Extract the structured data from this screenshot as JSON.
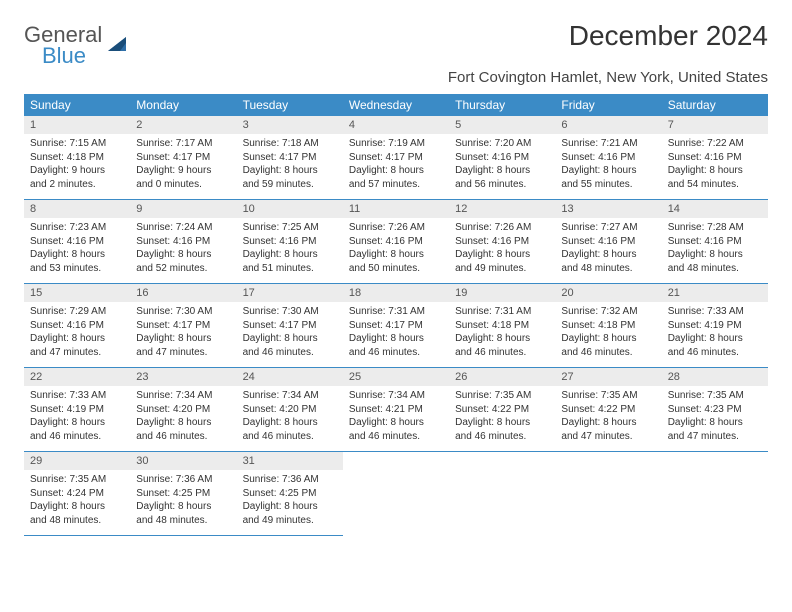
{
  "logo": {
    "general": "General",
    "blue": "Blue"
  },
  "title": "December 2024",
  "subtitle": "Fort Covington Hamlet, New York, United States",
  "colors": {
    "header_bg": "#3b8bc6",
    "header_text": "#ffffff",
    "daynum_bg": "#ececec",
    "border": "#3b8bc6",
    "body_text": "#333333"
  },
  "typography": {
    "title_fontsize": 28,
    "subtitle_fontsize": 15,
    "dayheader_fontsize": 12,
    "daynum_fontsize": 11,
    "body_fontsize": 10
  },
  "day_headers": [
    "Sunday",
    "Monday",
    "Tuesday",
    "Wednesday",
    "Thursday",
    "Friday",
    "Saturday"
  ],
  "weeks": [
    [
      {
        "num": "1",
        "sunrise": "Sunrise: 7:15 AM",
        "sunset": "Sunset: 4:18 PM",
        "daylight": "Daylight: 9 hours and 2 minutes."
      },
      {
        "num": "2",
        "sunrise": "Sunrise: 7:17 AM",
        "sunset": "Sunset: 4:17 PM",
        "daylight": "Daylight: 9 hours and 0 minutes."
      },
      {
        "num": "3",
        "sunrise": "Sunrise: 7:18 AM",
        "sunset": "Sunset: 4:17 PM",
        "daylight": "Daylight: 8 hours and 59 minutes."
      },
      {
        "num": "4",
        "sunrise": "Sunrise: 7:19 AM",
        "sunset": "Sunset: 4:17 PM",
        "daylight": "Daylight: 8 hours and 57 minutes."
      },
      {
        "num": "5",
        "sunrise": "Sunrise: 7:20 AM",
        "sunset": "Sunset: 4:16 PM",
        "daylight": "Daylight: 8 hours and 56 minutes."
      },
      {
        "num": "6",
        "sunrise": "Sunrise: 7:21 AM",
        "sunset": "Sunset: 4:16 PM",
        "daylight": "Daylight: 8 hours and 55 minutes."
      },
      {
        "num": "7",
        "sunrise": "Sunrise: 7:22 AM",
        "sunset": "Sunset: 4:16 PM",
        "daylight": "Daylight: 8 hours and 54 minutes."
      }
    ],
    [
      {
        "num": "8",
        "sunrise": "Sunrise: 7:23 AM",
        "sunset": "Sunset: 4:16 PM",
        "daylight": "Daylight: 8 hours and 53 minutes."
      },
      {
        "num": "9",
        "sunrise": "Sunrise: 7:24 AM",
        "sunset": "Sunset: 4:16 PM",
        "daylight": "Daylight: 8 hours and 52 minutes."
      },
      {
        "num": "10",
        "sunrise": "Sunrise: 7:25 AM",
        "sunset": "Sunset: 4:16 PM",
        "daylight": "Daylight: 8 hours and 51 minutes."
      },
      {
        "num": "11",
        "sunrise": "Sunrise: 7:26 AM",
        "sunset": "Sunset: 4:16 PM",
        "daylight": "Daylight: 8 hours and 50 minutes."
      },
      {
        "num": "12",
        "sunrise": "Sunrise: 7:26 AM",
        "sunset": "Sunset: 4:16 PM",
        "daylight": "Daylight: 8 hours and 49 minutes."
      },
      {
        "num": "13",
        "sunrise": "Sunrise: 7:27 AM",
        "sunset": "Sunset: 4:16 PM",
        "daylight": "Daylight: 8 hours and 48 minutes."
      },
      {
        "num": "14",
        "sunrise": "Sunrise: 7:28 AM",
        "sunset": "Sunset: 4:16 PM",
        "daylight": "Daylight: 8 hours and 48 minutes."
      }
    ],
    [
      {
        "num": "15",
        "sunrise": "Sunrise: 7:29 AM",
        "sunset": "Sunset: 4:16 PM",
        "daylight": "Daylight: 8 hours and 47 minutes."
      },
      {
        "num": "16",
        "sunrise": "Sunrise: 7:30 AM",
        "sunset": "Sunset: 4:17 PM",
        "daylight": "Daylight: 8 hours and 47 minutes."
      },
      {
        "num": "17",
        "sunrise": "Sunrise: 7:30 AM",
        "sunset": "Sunset: 4:17 PM",
        "daylight": "Daylight: 8 hours and 46 minutes."
      },
      {
        "num": "18",
        "sunrise": "Sunrise: 7:31 AM",
        "sunset": "Sunset: 4:17 PM",
        "daylight": "Daylight: 8 hours and 46 minutes."
      },
      {
        "num": "19",
        "sunrise": "Sunrise: 7:31 AM",
        "sunset": "Sunset: 4:18 PM",
        "daylight": "Daylight: 8 hours and 46 minutes."
      },
      {
        "num": "20",
        "sunrise": "Sunrise: 7:32 AM",
        "sunset": "Sunset: 4:18 PM",
        "daylight": "Daylight: 8 hours and 46 minutes."
      },
      {
        "num": "21",
        "sunrise": "Sunrise: 7:33 AM",
        "sunset": "Sunset: 4:19 PM",
        "daylight": "Daylight: 8 hours and 46 minutes."
      }
    ],
    [
      {
        "num": "22",
        "sunrise": "Sunrise: 7:33 AM",
        "sunset": "Sunset: 4:19 PM",
        "daylight": "Daylight: 8 hours and 46 minutes."
      },
      {
        "num": "23",
        "sunrise": "Sunrise: 7:34 AM",
        "sunset": "Sunset: 4:20 PM",
        "daylight": "Daylight: 8 hours and 46 minutes."
      },
      {
        "num": "24",
        "sunrise": "Sunrise: 7:34 AM",
        "sunset": "Sunset: 4:20 PM",
        "daylight": "Daylight: 8 hours and 46 minutes."
      },
      {
        "num": "25",
        "sunrise": "Sunrise: 7:34 AM",
        "sunset": "Sunset: 4:21 PM",
        "daylight": "Daylight: 8 hours and 46 minutes."
      },
      {
        "num": "26",
        "sunrise": "Sunrise: 7:35 AM",
        "sunset": "Sunset: 4:22 PM",
        "daylight": "Daylight: 8 hours and 46 minutes."
      },
      {
        "num": "27",
        "sunrise": "Sunrise: 7:35 AM",
        "sunset": "Sunset: 4:22 PM",
        "daylight": "Daylight: 8 hours and 47 minutes."
      },
      {
        "num": "28",
        "sunrise": "Sunrise: 7:35 AM",
        "sunset": "Sunset: 4:23 PM",
        "daylight": "Daylight: 8 hours and 47 minutes."
      }
    ],
    [
      {
        "num": "29",
        "sunrise": "Sunrise: 7:35 AM",
        "sunset": "Sunset: 4:24 PM",
        "daylight": "Daylight: 8 hours and 48 minutes."
      },
      {
        "num": "30",
        "sunrise": "Sunrise: 7:36 AM",
        "sunset": "Sunset: 4:25 PM",
        "daylight": "Daylight: 8 hours and 48 minutes."
      },
      {
        "num": "31",
        "sunrise": "Sunrise: 7:36 AM",
        "sunset": "Sunset: 4:25 PM",
        "daylight": "Daylight: 8 hours and 49 minutes."
      },
      null,
      null,
      null,
      null
    ]
  ]
}
